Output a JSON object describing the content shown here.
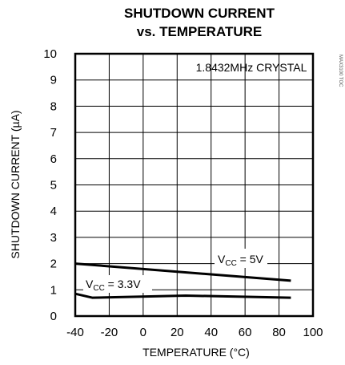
{
  "chart_data": {
    "type": "line",
    "title_line1": "SHUTDOWN CURRENT",
    "title_line2": "vs. TEMPERATURE",
    "xlabel": "TEMPERATURE (°C)",
    "ylabel": "SHUTDOWN CURRENT (µA)",
    "xlim": [
      -40,
      100
    ],
    "ylim": [
      0,
      10
    ],
    "xticks": [
      -40,
      -20,
      0,
      20,
      40,
      60,
      80,
      100
    ],
    "yticks": [
      0,
      1,
      2,
      3,
      4,
      5,
      6,
      7,
      8,
      9,
      10
    ],
    "grid": true,
    "annotation_crystal": "1.8432MHz CRYSTAL",
    "part_code": "MAX3100 TOC",
    "series": [
      {
        "name": "VCC = 5V",
        "label_main": "V",
        "label_sub": "CC",
        "label_rest": " = 5V",
        "x": [
          -40,
          87
        ],
        "y": [
          2.0,
          1.35
        ]
      },
      {
        "name": "VCC = 3.3V",
        "label_main": "V",
        "label_sub": "CC",
        "label_rest": " = 3.3V",
        "x": [
          -40,
          -30,
          25,
          87
        ],
        "y": [
          0.85,
          0.7,
          0.78,
          0.7
        ]
      }
    ]
  }
}
